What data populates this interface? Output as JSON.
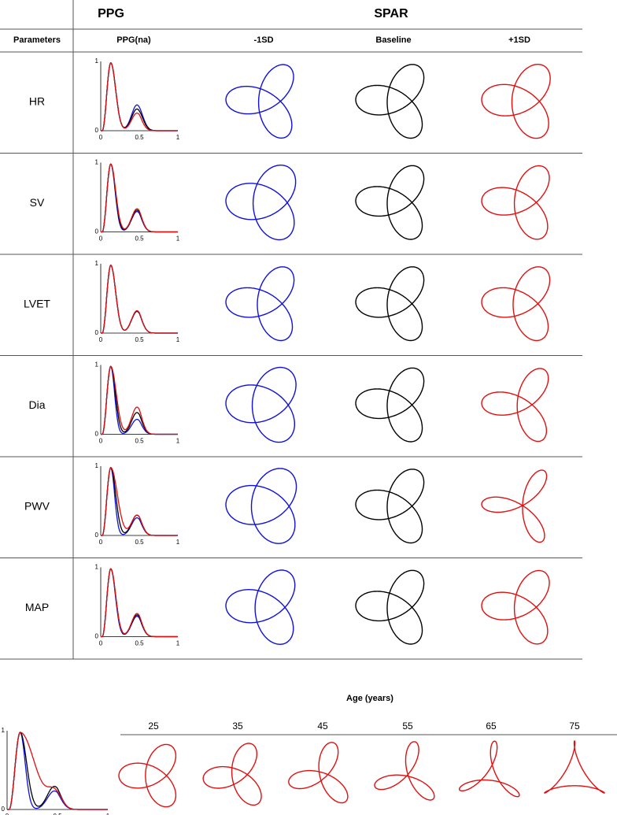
{
  "header": {
    "ppg": "PPG",
    "spar": "SPAR"
  },
  "columns": [
    "Parameters",
    "PPG(na)",
    "-1SD",
    "Baseline",
    "+1SD"
  ],
  "rows": [
    "HR",
    "SV",
    "LVET",
    "Dia",
    "PWV",
    "MAP"
  ],
  "ppg_axis": {
    "x_ticks": [
      "0",
      "0.5",
      "1"
    ],
    "y_ticks": [
      "0",
      "1"
    ]
  },
  "age": {
    "title": "Age (years)",
    "groups": [
      "25",
      "35",
      "45",
      "55",
      "65",
      "75"
    ]
  }
}
